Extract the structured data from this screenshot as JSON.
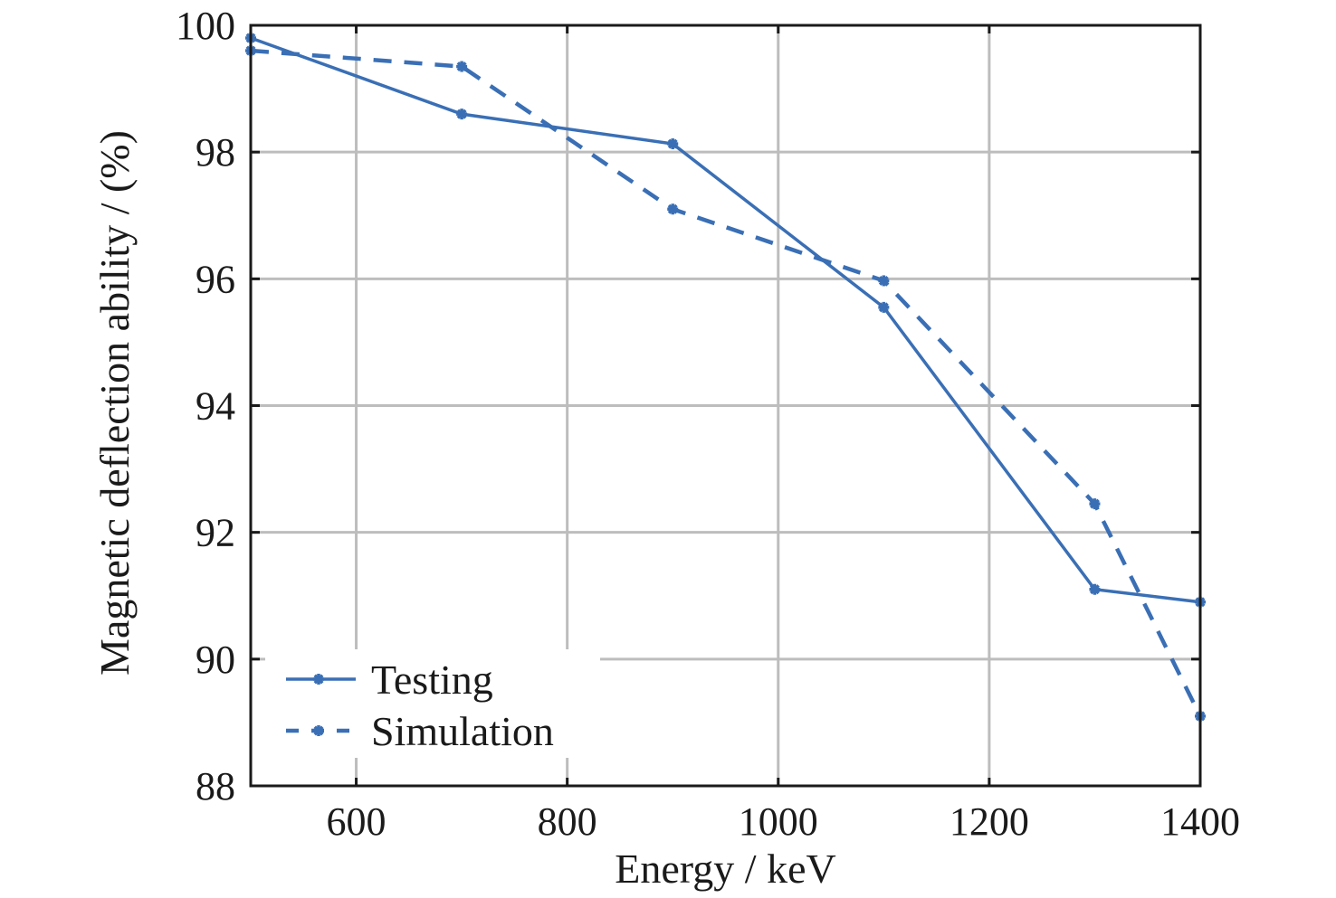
{
  "chart_data": {
    "type": "line",
    "title": "",
    "xlabel": "Energy / keV",
    "ylabel": "Magnetic deflection ability / (%)",
    "xlim": [
      500,
      1400
    ],
    "ylim": [
      88,
      100
    ],
    "xticks": [
      600,
      800,
      1000,
      1200,
      1400
    ],
    "xtick_labels": [
      "600",
      "800",
      "1000",
      "1200",
      "1400"
    ],
    "yticks": [
      88,
      90,
      92,
      94,
      96,
      98,
      100
    ],
    "ytick_labels": [
      "88",
      "90",
      "92",
      "94",
      "96",
      "98",
      "100"
    ],
    "grid": true,
    "legend_position": "bottom-left",
    "x": [
      500,
      700,
      900,
      1100,
      1300,
      1400
    ],
    "series": [
      {
        "name": "Testing",
        "style": "solid",
        "marker": "asterisk",
        "color": "#3a6fb5",
        "values": [
          99.8,
          98.6,
          98.13,
          95.55,
          91.1,
          90.9
        ]
      },
      {
        "name": "Simulation",
        "style": "dashed",
        "marker": "asterisk",
        "color": "#3a6fb5",
        "values": [
          99.6,
          99.35,
          97.1,
          95.97,
          92.45,
          89.1
        ]
      }
    ]
  }
}
